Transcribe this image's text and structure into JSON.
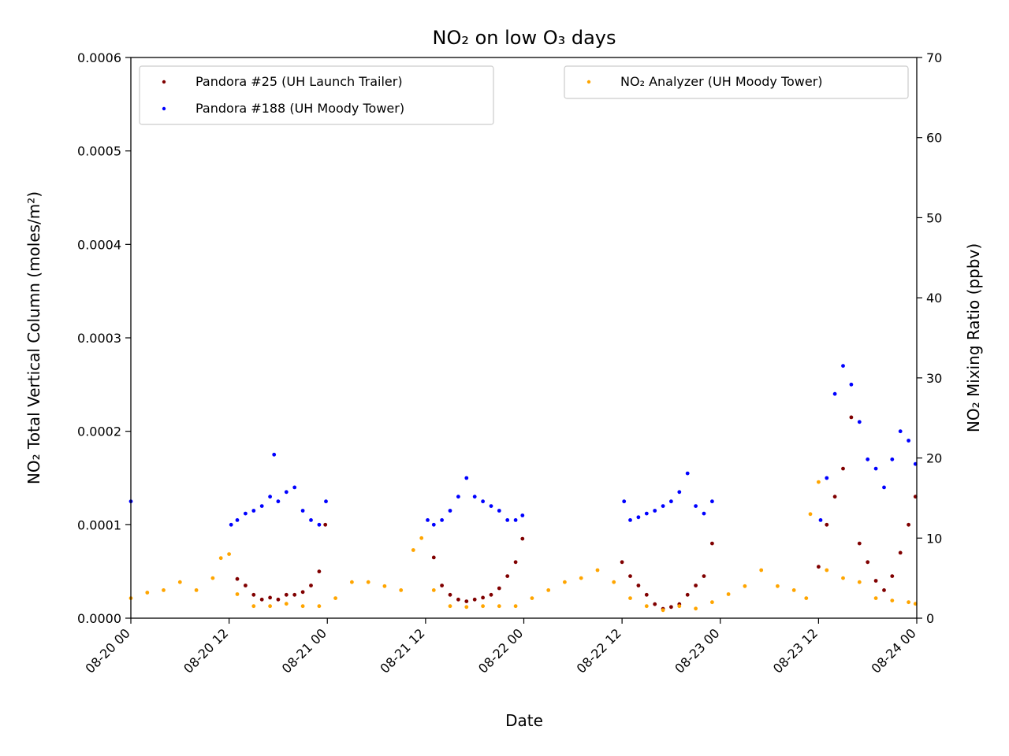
{
  "chart_data": {
    "type": "scatter",
    "title": "NO₂ on low O₃ days",
    "xlabel": "Date",
    "ylabel_left": "NO₂ Total Vertical Column (moles/m²)",
    "ylabel_right": "NO₂ Mixing Ratio (ppbv)",
    "x_range": [
      "08-20 00",
      "08-24 00"
    ],
    "x_ticks": [
      "08-20 00",
      "08-20 12",
      "08-21 00",
      "08-21 12",
      "08-22 00",
      "08-22 12",
      "08-23 00",
      "08-23 12",
      "08-24 00"
    ],
    "ylim_left": [
      0,
      0.0006
    ],
    "ylim_right": [
      0,
      70
    ],
    "y_ticks_left": [
      "0.0000",
      "0.0001",
      "0.0002",
      "0.0003",
      "0.0004",
      "0.0005",
      "0.0006"
    ],
    "y_ticks_right": [
      "0",
      "10",
      "20",
      "30",
      "40",
      "50",
      "60",
      "70"
    ],
    "grid": false,
    "legend_left_placement": "upper-left",
    "legend_right_placement": "upper-right",
    "series": [
      {
        "name": "Pandora #25 (UH Launch Trailer)",
        "axis": "left",
        "color": "#800000",
        "x": [
          "08-20 13:00",
          "08-20 14:00",
          "08-20 15:00",
          "08-20 16:00",
          "08-20 17:00",
          "08-20 18:00",
          "08-20 19:00",
          "08-20 20:00",
          "08-20 21:00",
          "08-20 22:00",
          "08-20 23:00",
          "08-20 23:45",
          "08-21 13:00",
          "08-21 14:00",
          "08-21 15:00",
          "08-21 16:00",
          "08-21 17:00",
          "08-21 18:00",
          "08-21 19:00",
          "08-21 20:00",
          "08-21 21:00",
          "08-21 22:00",
          "08-21 23:00",
          "08-21 23:50",
          "08-22 12:00",
          "08-22 13:00",
          "08-22 14:00",
          "08-22 15:00",
          "08-22 16:00",
          "08-22 17:00",
          "08-22 18:00",
          "08-22 19:00",
          "08-22 20:00",
          "08-22 21:00",
          "08-22 22:00",
          "08-22 23:00",
          "08-23 12:00",
          "08-23 13:00",
          "08-23 14:00",
          "08-23 15:00",
          "08-23 16:00",
          "08-23 17:00",
          "08-23 18:00",
          "08-23 19:00",
          "08-23 20:00",
          "08-23 21:00",
          "08-23 22:00",
          "08-23 23:00",
          "08-23 23:50"
        ],
        "values": [
          4.2e-05,
          3.5e-05,
          2.5e-05,
          2e-05,
          2.2e-05,
          2e-05,
          2.5e-05,
          2.5e-05,
          2.8e-05,
          3.5e-05,
          5e-05,
          0.0001,
          6.5e-05,
          3.5e-05,
          2.5e-05,
          2e-05,
          1.8e-05,
          2e-05,
          2.2e-05,
          2.5e-05,
          3.2e-05,
          4.5e-05,
          6e-05,
          8.5e-05,
          6e-05,
          4.5e-05,
          3.5e-05,
          2.5e-05,
          1.5e-05,
          1e-05,
          1.2e-05,
          1.5e-05,
          2.5e-05,
          3.5e-05,
          4.5e-05,
          8e-05,
          5.5e-05,
          0.0001,
          0.00013,
          0.00016,
          0.000215,
          8e-05,
          6e-05,
          4e-05,
          3e-05,
          4.5e-05,
          7e-05,
          0.0001,
          0.00013
        ]
      },
      {
        "name": "Pandora #188 (UH Moody Tower)",
        "axis": "left",
        "color": "#0000ff",
        "x": [
          "08-20 00:00",
          "08-20 12:15",
          "08-20 13:00",
          "08-20 14:00",
          "08-20 15:00",
          "08-20 16:00",
          "08-20 17:00",
          "08-20 17:30",
          "08-20 18:00",
          "08-20 19:00",
          "08-20 20:00",
          "08-20 21:00",
          "08-20 22:00",
          "08-20 23:00",
          "08-20 23:50",
          "08-21 12:15",
          "08-21 13:00",
          "08-21 14:00",
          "08-21 15:00",
          "08-21 16:00",
          "08-21 17:00",
          "08-21 18:00",
          "08-21 19:00",
          "08-21 20:00",
          "08-21 21:00",
          "08-21 22:00",
          "08-21 23:00",
          "08-21 23:50",
          "08-22 12:15",
          "08-22 13:00",
          "08-22 14:00",
          "08-22 15:00",
          "08-22 16:00",
          "08-22 17:00",
          "08-22 18:00",
          "08-22 19:00",
          "08-22 20:00",
          "08-22 21:00",
          "08-22 22:00",
          "08-22 23:00",
          "08-23 12:15",
          "08-23 13:00",
          "08-23 14:00",
          "08-23 15:00",
          "08-23 16:00",
          "08-23 17:00",
          "08-23 18:00",
          "08-23 19:00",
          "08-23 20:00",
          "08-23 21:00",
          "08-23 22:00",
          "08-23 23:00",
          "08-23 23:50"
        ],
        "values": [
          0.000125,
          0.0001,
          0.000105,
          0.000112,
          0.000115,
          0.00012,
          0.00013,
          0.000175,
          0.000125,
          0.000135,
          0.00014,
          0.000115,
          0.000105,
          0.0001,
          0.000125,
          0.000105,
          0.0001,
          0.000105,
          0.000115,
          0.00013,
          0.00015,
          0.00013,
          0.000125,
          0.00012,
          0.000115,
          0.000105,
          0.000105,
          0.00011,
          0.000125,
          0.000105,
          0.000108,
          0.000112,
          0.000115,
          0.00012,
          0.000125,
          0.000135,
          0.000155,
          0.00012,
          0.000112,
          0.000125,
          0.000105,
          0.00015,
          0.00024,
          0.00027,
          0.00025,
          0.00021,
          0.00017,
          0.00016,
          0.00014,
          0.00017,
          0.0002,
          0.00019,
          0.000165
        ]
      },
      {
        "name": "NO₂ Analyzer (UH Moody Tower)",
        "axis": "right",
        "color": "#ffa500",
        "x": [
          "08-20 00:00",
          "08-20 02:00",
          "08-20 04:00",
          "08-20 06:00",
          "08-20 08:00",
          "08-20 10:00",
          "08-20 11:00",
          "08-20 12:00",
          "08-20 13:00",
          "08-20 15:00",
          "08-20 17:00",
          "08-20 19:00",
          "08-20 21:00",
          "08-20 23:00",
          "08-21 01:00",
          "08-21 03:00",
          "08-21 05:00",
          "08-21 07:00",
          "08-21 09:00",
          "08-21 10:30",
          "08-21 11:30",
          "08-21 13:00",
          "08-21 15:00",
          "08-21 17:00",
          "08-21 19:00",
          "08-21 21:00",
          "08-21 23:00",
          "08-22 01:00",
          "08-22 03:00",
          "08-22 05:00",
          "08-22 07:00",
          "08-22 09:00",
          "08-22 11:00",
          "08-22 13:00",
          "08-22 15:00",
          "08-22 17:00",
          "08-22 19:00",
          "08-22 21:00",
          "08-22 23:00",
          "08-23 01:00",
          "08-23 03:00",
          "08-23 05:00",
          "08-23 07:00",
          "08-23 09:00",
          "08-23 10:30",
          "08-23 11:00",
          "08-23 12:00",
          "08-23 13:00",
          "08-23 15:00",
          "08-23 17:00",
          "08-23 19:00",
          "08-23 21:00",
          "08-23 23:00",
          "08-23 23:50"
        ],
        "values": [
          2.5,
          3.2,
          3.5,
          4.5,
          3.5,
          5,
          7.5,
          8,
          3,
          1.5,
          1.5,
          1.8,
          1.5,
          1.5,
          2.5,
          4.5,
          4.5,
          4,
          3.5,
          8.5,
          10,
          3.5,
          1.5,
          1.4,
          1.5,
          1.5,
          1.5,
          2.5,
          3.5,
          4.5,
          5,
          6,
          4.5,
          2.5,
          1.5,
          1,
          1.5,
          1.2,
          2,
          3,
          4,
          6,
          4,
          3.5,
          2.5,
          13,
          17,
          6,
          5,
          4.5,
          2.5,
          2.2,
          2,
          1.8
        ]
      }
    ]
  }
}
